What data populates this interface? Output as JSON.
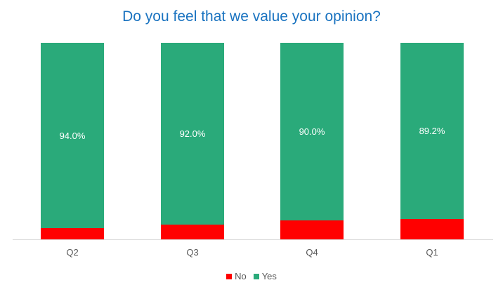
{
  "chart_data": {
    "type": "bar",
    "stacked": true,
    "percent": true,
    "title": "Do you feel that we value your opinion?",
    "categories": [
      "Q2",
      "Q3",
      "Q4",
      "Q1"
    ],
    "series": [
      {
        "name": "No",
        "color": "#ff0000",
        "values": [
          6.0,
          8.0,
          10.0,
          10.8
        ]
      },
      {
        "name": "Yes",
        "color": "#2aaa7a",
        "values": [
          94.0,
          92.0,
          90.0,
          89.2
        ]
      }
    ],
    "data_labels": [
      "94.0%",
      "92.0%",
      "90.0%",
      "89.2%"
    ],
    "xlabel": "",
    "ylabel": "",
    "ylim": [
      0,
      100
    ],
    "grid": false,
    "legend_position": "bottom"
  },
  "legend": [
    {
      "label": "No",
      "color": "#ff0000"
    },
    {
      "label": "Yes",
      "color": "#2aaa7a"
    }
  ]
}
